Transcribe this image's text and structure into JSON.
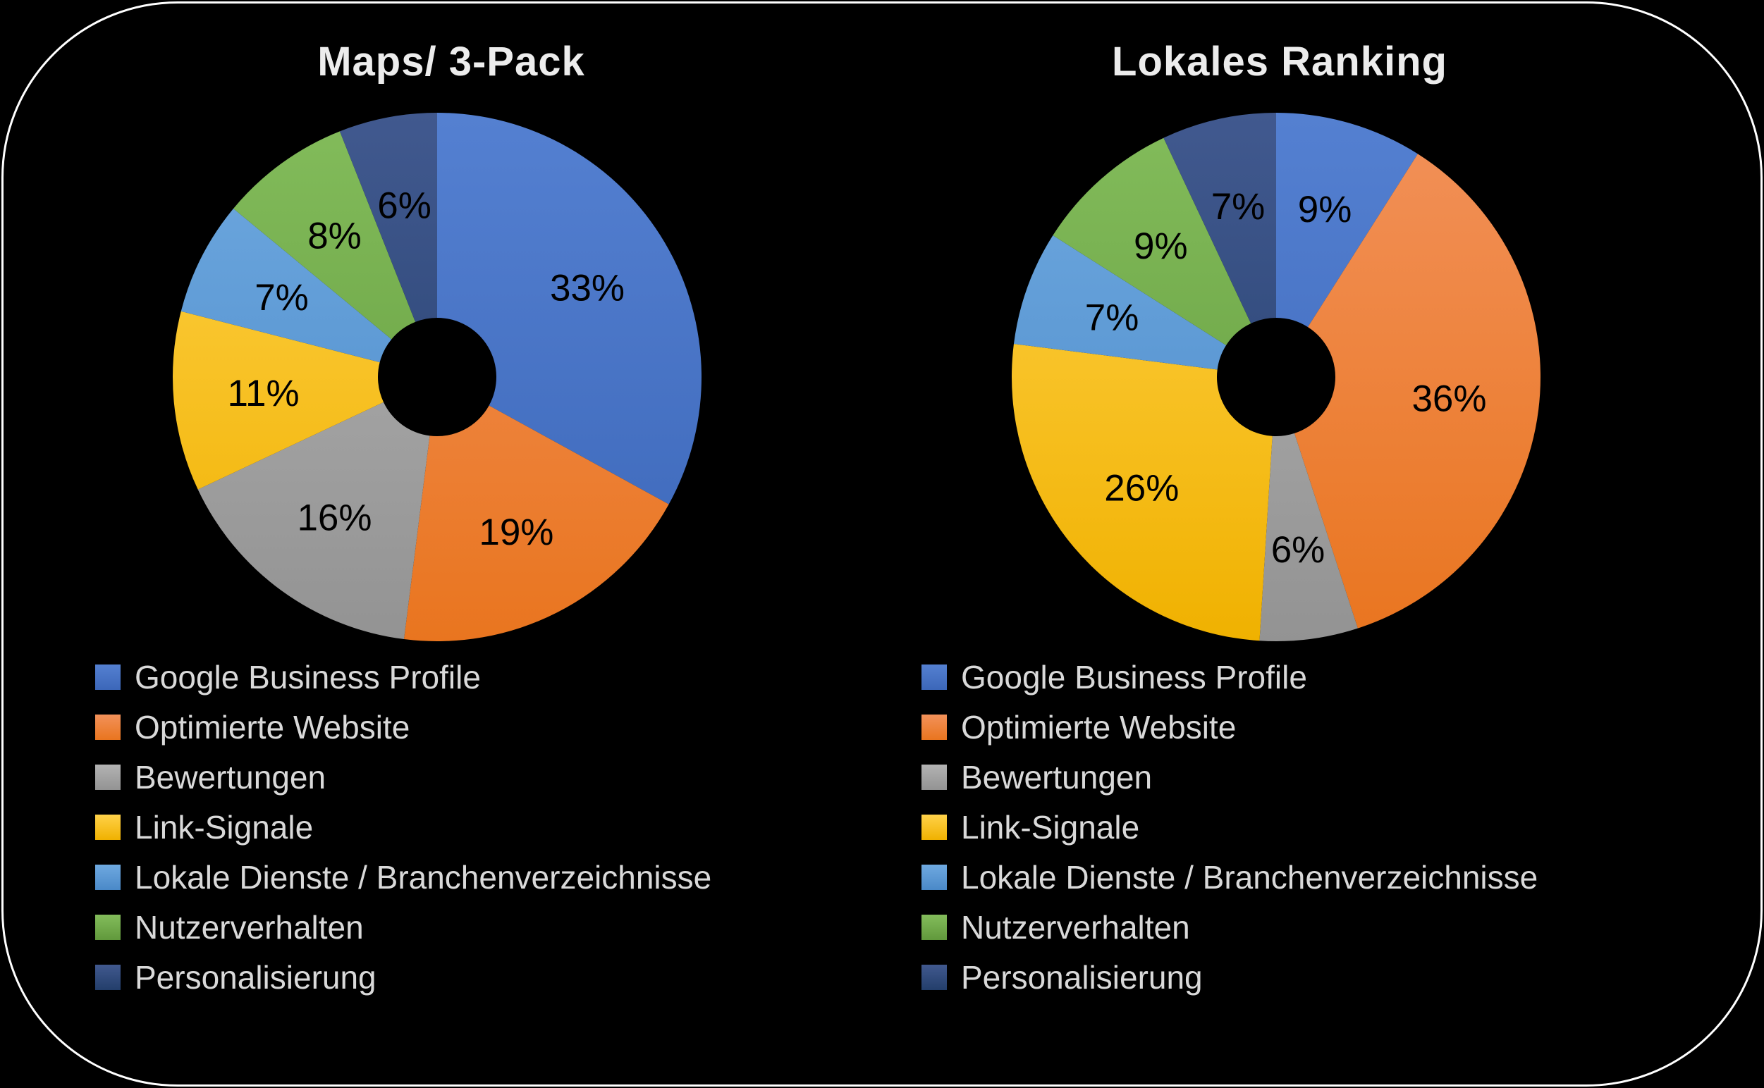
{
  "frame": {
    "background": "#000000",
    "border_color": "#FFFFFF"
  },
  "style": {
    "title_color": "#ECECEC",
    "value_label_color": "#000000",
    "legend_text_color": "#D9D9D9",
    "palette": [
      {
        "name": "blue",
        "base": "#4472C4",
        "light": "#5480D1",
        "dark": "#3C67B9"
      },
      {
        "name": "orange",
        "base": "#ED7D31",
        "light": "#F2915A",
        "dark": "#E9751F"
      },
      {
        "name": "gray",
        "base": "#A5A5A5",
        "light": "#B3B3B3",
        "dark": "#939393"
      },
      {
        "name": "yellow",
        "base": "#FFC000",
        "light": "#FFD24A",
        "dark": "#F0B100"
      },
      {
        "name": "light-blue",
        "base": "#5B9BD5",
        "light": "#6FA9E0",
        "dark": "#4A89C8"
      },
      {
        "name": "green",
        "base": "#70AD47",
        "light": "#83BC5B",
        "dark": "#61993C"
      },
      {
        "name": "navy",
        "base": "#2E4D7E",
        "light": "#41598F",
        "dark": "#233E6B"
      }
    ]
  },
  "chart_data": [
    {
      "type": "pie",
      "subtype": "donut",
      "title": "Maps/ 3-Pack",
      "unit": "%",
      "direction": "clockwise",
      "start_angle_deg": 0,
      "legend_position": "bottom-left",
      "categories": [
        "Google Business Profile",
        "Optimierte Website",
        "Bewertungen",
        "Link-Signale",
        "Lokale Dienste / Branchenverzeichnisse",
        "Nutzerverhalten",
        "Personalisierung"
      ],
      "values": [
        33,
        19,
        16,
        11,
        7,
        8,
        6
      ],
      "colors": [
        "#4472C4",
        "#ED7D31",
        "#A5A5A5",
        "#FFC000",
        "#5B9BD5",
        "#70AD47",
        "#2E4D7E"
      ]
    },
    {
      "type": "pie",
      "subtype": "donut",
      "title": "Lokales Ranking",
      "unit": "%",
      "direction": "clockwise",
      "start_angle_deg": 0,
      "legend_position": "bottom-left",
      "categories": [
        "Google Business Profile",
        "Optimierte Website",
        "Bewertungen",
        "Link-Signale",
        "Lokale Dienste / Branchenverzeichnisse",
        "Nutzerverhalten",
        "Personalisierung"
      ],
      "values": [
        9,
        36,
        6,
        26,
        7,
        9,
        7
      ],
      "colors": [
        "#4472C4",
        "#ED7D31",
        "#A5A5A5",
        "#FFC000",
        "#5B9BD5",
        "#70AD47",
        "#2E4D7E"
      ]
    }
  ]
}
